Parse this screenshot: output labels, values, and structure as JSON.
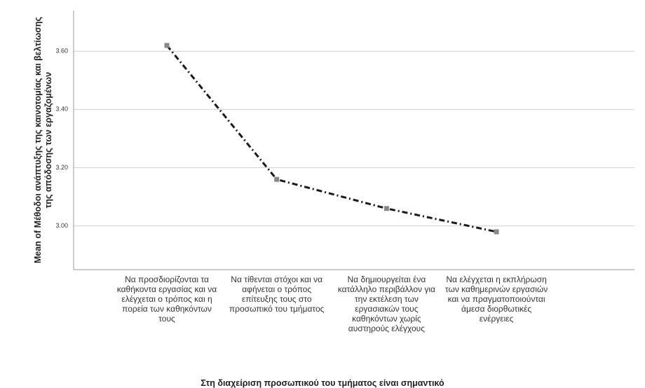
{
  "chart_data": {
    "type": "line",
    "ylabel": "Mean of Μέθοδοι ανάπτυξης της καινοτομίας και βελτίωσης της απόδοσης των εργαζομένων",
    "xlabel": "Στη διαχείριση προσωπικού του τμήματος είναι σημαντικό",
    "categories": [
      "Να προσδιορίζονται τα καθήκοντα εργασίας και να ελέγχεται ο τρόπος και η πορεία των καθηκόντων τους",
      "Να τίθενται στόχοι και να αφήνεται ο τρόπος επίτευξης τους στο προσωπικό του τμήματος",
      "Να δημιουργείται ένα κατάλληλο περιβάλλον για την εκτέλεση των εργασιακών τους καθηκόντων χωρίς αυστηρούς ελέγχους",
      "Να ελέγχεται η εκπλήρωση των καθημερινών εργασιών και να πραγματοποιούνται άμεσα διορθωτικές ενέργειες"
    ],
    "values": [
      3.62,
      3.16,
      3.06,
      2.98
    ],
    "color": "#1a1a1a",
    "marker_color": "#888888",
    "ylim": [
      2.85,
      3.74
    ],
    "yticks": [
      {
        "value": 3,
        "label": "3.00"
      },
      {
        "value": 3.2,
        "label": "3.20"
      },
      {
        "value": 3.4,
        "label": "3.40"
      },
      {
        "value": 3.6,
        "label": "3.60"
      }
    ],
    "grid": true
  }
}
